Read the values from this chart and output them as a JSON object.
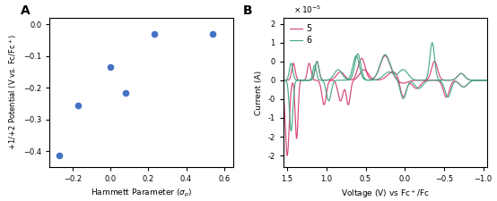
{
  "panel_A": {
    "x_data": [
      -0.27,
      -0.17,
      0.0,
      0.08,
      0.23,
      0.54
    ],
    "y_data": [
      -0.415,
      -0.255,
      -0.135,
      -0.215,
      -0.03,
      -0.03
    ],
    "xlabel": "Hammett Parameter ($\\sigma_p$)",
    "ylabel": "+1/+2 Potential (V vs. Fc/Fc$^+$)",
    "xlim": [
      -0.32,
      0.65
    ],
    "ylim": [
      -0.45,
      0.02
    ],
    "xticks": [
      -0.2,
      0.0,
      0.2,
      0.4,
      0.6
    ],
    "yticks": [
      0,
      -0.1,
      -0.2,
      -0.3,
      -0.4
    ],
    "marker_color": "#4472C4",
    "marker_size": 30
  },
  "panel_B": {
    "xlabel": "Voltage (V) vs Fc$^+$/Fc",
    "ylabel": "Current (A)",
    "xlim": [
      1.55,
      -1.05
    ],
    "ylim": [
      -2.3e-05,
      1.65e-05
    ],
    "color_5": "#d6477a",
    "color_6": "#4aaa8a",
    "legend_labels": [
      "5",
      "6"
    ],
    "xticks": [
      1.5,
      1.0,
      0.5,
      0.0,
      -0.5,
      -1.0
    ],
    "yticks": [
      -2e-05,
      -1.5e-05,
      -1e-05,
      -5e-06,
      0.0,
      5e-06,
      1e-05,
      1.5e-05
    ]
  },
  "background_color": "#ffffff"
}
